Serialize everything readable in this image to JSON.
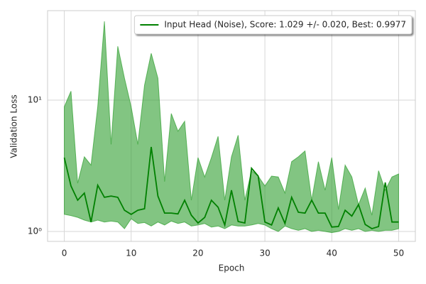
{
  "chart_data": {
    "type": "line",
    "x_label": "Epoch",
    "y_label": "Validation Loss",
    "x": [
      0,
      1,
      2,
      3,
      4,
      5,
      6,
      7,
      8,
      9,
      10,
      11,
      12,
      13,
      14,
      15,
      16,
      17,
      18,
      19,
      20,
      21,
      22,
      23,
      24,
      25,
      26,
      27,
      28,
      29,
      30,
      31,
      32,
      33,
      34,
      35,
      36,
      37,
      38,
      39,
      40,
      41,
      42,
      43,
      44,
      45,
      46,
      47,
      48,
      49,
      50
    ],
    "series": [
      {
        "name": "Input Head (Noise), Score: 1.029 +/- 0.020,  Best: 0.9977",
        "color": "#008000",
        "values": [
          3.65,
          2.22,
          1.73,
          1.96,
          1.18,
          2.25,
          1.82,
          1.86,
          1.82,
          1.45,
          1.35,
          1.45,
          1.49,
          4.4,
          1.86,
          1.38,
          1.38,
          1.36,
          1.73,
          1.33,
          1.16,
          1.28,
          1.73,
          1.53,
          1.12,
          2.06,
          1.19,
          1.16,
          3.03,
          2.64,
          1.18,
          1.12,
          1.51,
          1.15,
          1.82,
          1.4,
          1.38,
          1.73,
          1.38,
          1.38,
          1.08,
          1.09,
          1.45,
          1.31,
          1.6,
          1.13,
          1.05,
          1.09,
          2.36,
          1.18,
          1.18
        ],
        "band_color": "#2e9e2e",
        "upper": [
          8.9,
          11.7,
          2.33,
          3.7,
          3.2,
          8.9,
          39.8,
          4.6,
          25.7,
          14.7,
          8.9,
          4.6,
          13,
          22.7,
          14.7,
          2.4,
          7.9,
          5.8,
          6.9,
          1.73,
          3.65,
          2.6,
          3.65,
          5.3,
          1.73,
          3.7,
          5.4,
          1.73,
          2.9,
          2.64,
          2.22,
          2.64,
          2.6,
          1.96,
          3.4,
          3.7,
          4.1,
          1.73,
          3.4,
          2.06,
          3.65,
          1.47,
          3.2,
          2.6,
          1.6,
          2.14,
          1.33,
          2.9,
          2.06,
          2.6,
          2.74
        ],
        "lower": [
          1.35,
          1.32,
          1.28,
          1.22,
          1.18,
          1.22,
          1.18,
          1.2,
          1.18,
          1.05,
          1.25,
          1.15,
          1.17,
          1.1,
          1.18,
          1.12,
          1.2,
          1.15,
          1.18,
          1.1,
          1.12,
          1.15,
          1.08,
          1.1,
          1.05,
          1.12,
          1.1,
          1.1,
          1.12,
          1.15,
          1.12,
          1.05,
          1.0,
          1.1,
          1.05,
          1.02,
          1.05,
          1.0,
          1.02,
          1.0,
          0.98,
          1.0,
          1.05,
          1.02,
          1.05,
          1.0,
          1.02,
          1.0,
          1.02,
          1.02,
          1.05
        ]
      }
    ],
    "xlim": [
      -2.5,
      52.5
    ],
    "xticks": [
      0,
      10,
      20,
      30,
      40,
      50
    ],
    "ylim": [
      0.84,
      48
    ],
    "yscale": "log",
    "yticks": [
      {
        "value": 1,
        "label": "10⁰"
      },
      {
        "value": 10,
        "label": "10¹"
      }
    ],
    "grid": true,
    "legend": "upper right"
  }
}
